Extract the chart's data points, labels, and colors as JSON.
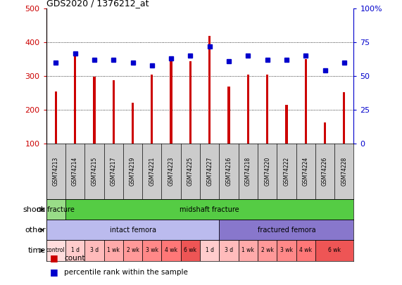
{
  "title": "GDS2020 / 1376212_at",
  "samples": [
    "GSM74213",
    "GSM74214",
    "GSM74215",
    "GSM74217",
    "GSM74219",
    "GSM74221",
    "GSM74223",
    "GSM74225",
    "GSM74227",
    "GSM74216",
    "GSM74218",
    "GSM74220",
    "GSM74222",
    "GSM74224",
    "GSM74226",
    "GSM74228"
  ],
  "counts": [
    255,
    370,
    298,
    288,
    222,
    305,
    350,
    345,
    420,
    270,
    305,
    305,
    215,
    350,
    162,
    252
  ],
  "percentile": [
    60,
    67,
    62,
    62,
    60,
    58,
    63,
    65,
    72,
    61,
    65,
    62,
    62,
    65,
    54,
    60
  ],
  "bar_color": "#cc0000",
  "dot_color": "#0000cc",
  "ylim_left": [
    100,
    500
  ],
  "ylim_right": [
    0,
    100
  ],
  "yticks_left": [
    100,
    200,
    300,
    400,
    500
  ],
  "yticks_right": [
    0,
    25,
    50,
    75,
    100
  ],
  "shock_groups": [
    {
      "label": "no fracture",
      "start": 0,
      "end": 1,
      "color": "#99dd88"
    },
    {
      "label": "midshaft fracture",
      "start": 1,
      "end": 16,
      "color": "#55cc44"
    }
  ],
  "other_groups": [
    {
      "label": "intact femora",
      "start": 0,
      "end": 9,
      "color": "#bbbbee"
    },
    {
      "label": "fractured femora",
      "start": 9,
      "end": 16,
      "color": "#8877cc"
    }
  ],
  "time_groups": [
    {
      "label": "control",
      "start": 0,
      "end": 1,
      "color": "#ffdddd"
    },
    {
      "label": "1 d",
      "start": 1,
      "end": 2,
      "color": "#ffcccc"
    },
    {
      "label": "3 d",
      "start": 2,
      "end": 3,
      "color": "#ffbbbb"
    },
    {
      "label": "1 wk",
      "start": 3,
      "end": 4,
      "color": "#ffaaaa"
    },
    {
      "label": "2 wk",
      "start": 4,
      "end": 5,
      "color": "#ff9999"
    },
    {
      "label": "3 wk",
      "start": 5,
      "end": 6,
      "color": "#ff8888"
    },
    {
      "label": "4 wk",
      "start": 6,
      "end": 7,
      "color": "#ff7777"
    },
    {
      "label": "6 wk",
      "start": 7,
      "end": 8,
      "color": "#ee5555"
    },
    {
      "label": "1 d",
      "start": 8,
      "end": 9,
      "color": "#ffcccc"
    },
    {
      "label": "3 d",
      "start": 9,
      "end": 10,
      "color": "#ffbbbb"
    },
    {
      "label": "1 wk",
      "start": 10,
      "end": 11,
      "color": "#ffaaaa"
    },
    {
      "label": "2 wk",
      "start": 11,
      "end": 12,
      "color": "#ff9999"
    },
    {
      "label": "3 wk",
      "start": 12,
      "end": 13,
      "color": "#ff8888"
    },
    {
      "label": "4 wk",
      "start": 13,
      "end": 14,
      "color": "#ff7777"
    },
    {
      "label": "6 wk",
      "start": 14,
      "end": 16,
      "color": "#ee5555"
    }
  ],
  "row_labels": [
    "shock",
    "other",
    "time"
  ],
  "bg_color": "#ffffff",
  "axis_color_left": "#cc0000",
  "axis_color_right": "#0000cc",
  "xlabel_bg": "#cccccc",
  "bar_width": 0.12
}
